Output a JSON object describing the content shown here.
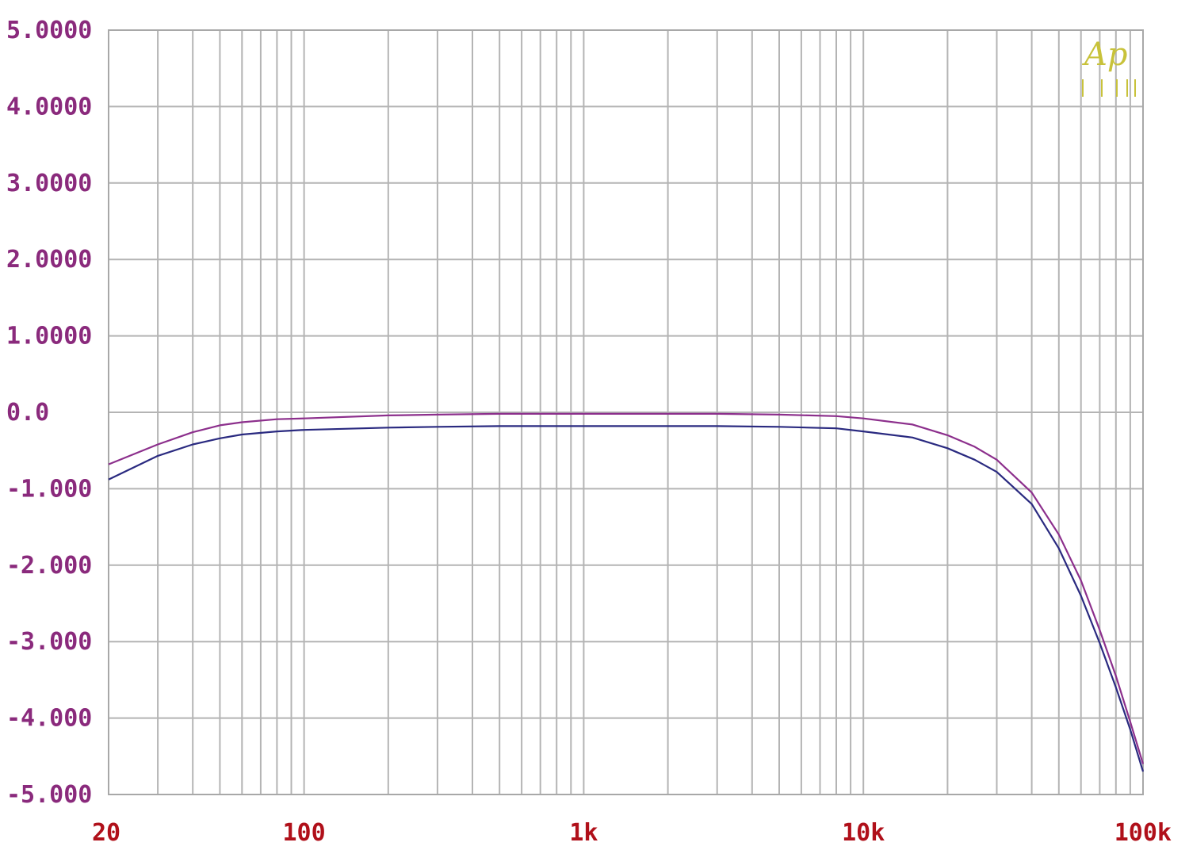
{
  "logo": "Ap",
  "colors": {
    "grid": "#b4b4b4",
    "frame": "#a8a8a8",
    "y_tick_text": "#8a2a7c",
    "x_tick_text": "#b0101a",
    "logo": "#c8c23a"
  },
  "chart_data": {
    "type": "line",
    "x_scale": "log",
    "xlim": [
      20,
      100000
    ],
    "ylim": [
      -5,
      5
    ],
    "grid": true,
    "x_tick_values": [
      20,
      100,
      1000,
      10000,
      100000
    ],
    "x_tick_labels": [
      "20",
      "100",
      "1k",
      "10k",
      "100k"
    ],
    "y_tick_values": [
      5,
      4,
      3,
      2,
      1,
      0,
      -1,
      -2,
      -3,
      -4,
      -5
    ],
    "y_tick_labels": [
      "5.0000",
      "4.0000",
      "3.0000",
      "2.0000",
      "1.0000",
      "0.0",
      "-1.000",
      "-2.000",
      "-3.000",
      "-4.000",
      "-5.000"
    ],
    "series": [
      {
        "color": "#8c2f8c",
        "x": [
          20,
          30,
          40,
          50,
          60,
          80,
          100,
          200,
          300,
          500,
          1000,
          2000,
          3000,
          5000,
          8000,
          10000,
          15000,
          20000,
          25000,
          30000,
          40000,
          50000,
          60000,
          70000,
          80000,
          90000,
          100000
        ],
        "y": [
          -0.68,
          -0.42,
          -0.26,
          -0.17,
          -0.13,
          -0.09,
          -0.08,
          -0.04,
          -0.03,
          -0.02,
          -0.02,
          -0.02,
          -0.02,
          -0.03,
          -0.05,
          -0.08,
          -0.16,
          -0.3,
          -0.45,
          -0.62,
          -1.05,
          -1.6,
          -2.2,
          -2.85,
          -3.45,
          -4.05,
          -4.6
        ]
      },
      {
        "color": "#2a2a80",
        "x": [
          20,
          30,
          40,
          50,
          60,
          80,
          100,
          200,
          300,
          500,
          1000,
          2000,
          3000,
          5000,
          8000,
          10000,
          15000,
          20000,
          25000,
          30000,
          40000,
          50000,
          60000,
          70000,
          80000,
          90000,
          100000
        ],
        "y": [
          -0.88,
          -0.57,
          -0.42,
          -0.34,
          -0.29,
          -0.25,
          -0.23,
          -0.2,
          -0.19,
          -0.18,
          -0.18,
          -0.18,
          -0.18,
          -0.19,
          -0.21,
          -0.25,
          -0.33,
          -0.47,
          -0.62,
          -0.78,
          -1.2,
          -1.78,
          -2.4,
          -3.02,
          -3.6,
          -4.15,
          -4.7
        ]
      }
    ]
  }
}
